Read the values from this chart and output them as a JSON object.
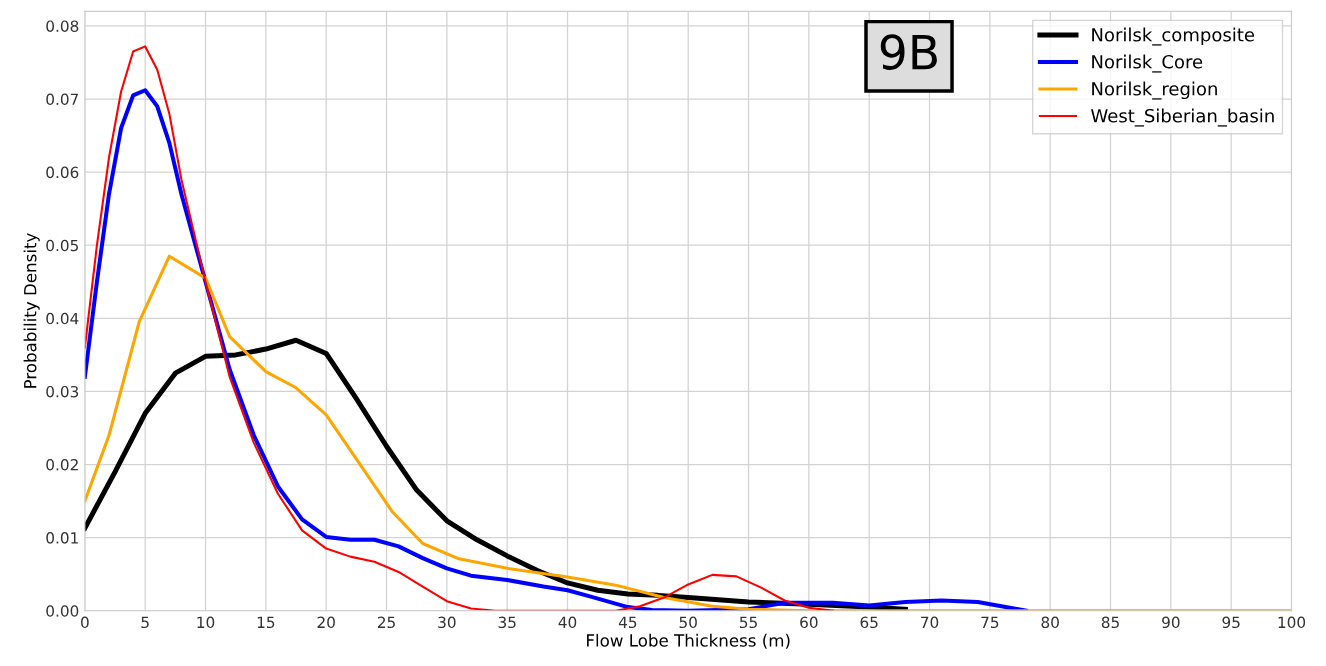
{
  "chart_data": {
    "type": "line",
    "xlabel": "Flow Lobe Thickness (m)",
    "ylabel": "Probability Density",
    "xlim": [
      0,
      100
    ],
    "xticks": [
      0,
      5,
      10,
      15,
      20,
      25,
      30,
      35,
      40,
      45,
      50,
      55,
      60,
      65,
      70,
      75,
      80,
      85,
      90,
      95,
      100
    ],
    "ylim": [
      0,
      0.082
    ],
    "yticks": [
      {
        "value": 0,
        "label": "0.00"
      },
      {
        "value": 0.01,
        "label": "0.01"
      },
      {
        "value": 0.02,
        "label": "0.02"
      },
      {
        "value": 0.03,
        "label": "0.03"
      },
      {
        "value": 0.04,
        "label": "0.04"
      },
      {
        "value": 0.05,
        "label": "0.05"
      },
      {
        "value": 0.06,
        "label": "0.06"
      },
      {
        "value": 0.07,
        "label": "0.07"
      },
      {
        "value": 0.08,
        "label": "0.08"
      }
    ],
    "grid": true,
    "legend": "top right",
    "marker": "none",
    "line_style": "solid",
    "annotations": [
      "9B"
    ],
    "series": [
      {
        "name": "Norilsk_composite",
        "color": "#000000",
        "x": [
          0,
          2.5,
          5,
          7.5,
          10,
          12.5,
          15,
          17.5,
          20,
          22.5,
          25,
          27.5,
          30,
          32.5,
          35,
          37.5,
          40,
          42.5,
          45,
          47.5,
          50,
          55,
          60,
          65,
          68
        ],
        "values": [
          0.0113,
          0.019,
          0.027,
          0.0325,
          0.0348,
          0.035,
          0.0358,
          0.037,
          0.0352,
          0.029,
          0.0225,
          0.0165,
          0.0123,
          0.0097,
          0.0075,
          0.0055,
          0.0038,
          0.0028,
          0.0023,
          0.0021,
          0.0018,
          0.0012,
          0.0009,
          0.0005,
          0.0002
        ]
      },
      {
        "name": "Norilsk_Core",
        "color": "#0000ff",
        "x": [
          0,
          1,
          2,
          3,
          4,
          5,
          6,
          7,
          8,
          10,
          12,
          14,
          16,
          18,
          20,
          22,
          24,
          26,
          28,
          30,
          32,
          35,
          38,
          40,
          42,
          45,
          47,
          50,
          55,
          58,
          62,
          65,
          68,
          71,
          74,
          77,
          78
        ],
        "values": [
          0.032,
          0.045,
          0.057,
          0.066,
          0.0705,
          0.0712,
          0.069,
          0.064,
          0.057,
          0.045,
          0.033,
          0.024,
          0.017,
          0.0125,
          0.0101,
          0.0097,
          0.0097,
          0.0088,
          0.0072,
          0.0058,
          0.0048,
          0.0042,
          0.0033,
          0.0028,
          0.0019,
          0.0005,
          0.0001,
          0.0,
          0.0002,
          0.0011,
          0.0011,
          0.0007,
          0.0012,
          0.0014,
          0.0012,
          0.0003,
          0.0
        ]
      },
      {
        "name": "Norilsk_region",
        "color": "#ffa500",
        "x": [
          0,
          2,
          4.5,
          7,
          10,
          12,
          15,
          17.5,
          20,
          25.5,
          28,
          31,
          35,
          40,
          44,
          48,
          52,
          55,
          60,
          100
        ],
        "values": [
          0.015,
          0.024,
          0.0395,
          0.0485,
          0.0455,
          0.0375,
          0.0327,
          0.0305,
          0.0268,
          0.0135,
          0.0092,
          0.0071,
          0.0058,
          0.0046,
          0.0035,
          0.0018,
          0.0006,
          0.0002,
          0.0,
          0.0
        ]
      },
      {
        "name": "West_Siberian_basin",
        "color": "#ff0000",
        "x": [
          0,
          1,
          2,
          3,
          4,
          5,
          6,
          7,
          8,
          10,
          12,
          14,
          16,
          18,
          20,
          22,
          24,
          26,
          28,
          30,
          32,
          34,
          44,
          46,
          48,
          50,
          52,
          54,
          56,
          58,
          60,
          62
        ],
        "values": [
          0.036,
          0.05,
          0.062,
          0.071,
          0.0765,
          0.0772,
          0.074,
          0.068,
          0.059,
          0.045,
          0.032,
          0.023,
          0.016,
          0.011,
          0.0085,
          0.0074,
          0.0067,
          0.0053,
          0.0033,
          0.0013,
          0.0003,
          0.0,
          0.0,
          0.0006,
          0.0018,
          0.0036,
          0.0049,
          0.0047,
          0.0032,
          0.0014,
          0.0004,
          0.0
        ]
      }
    ]
  }
}
